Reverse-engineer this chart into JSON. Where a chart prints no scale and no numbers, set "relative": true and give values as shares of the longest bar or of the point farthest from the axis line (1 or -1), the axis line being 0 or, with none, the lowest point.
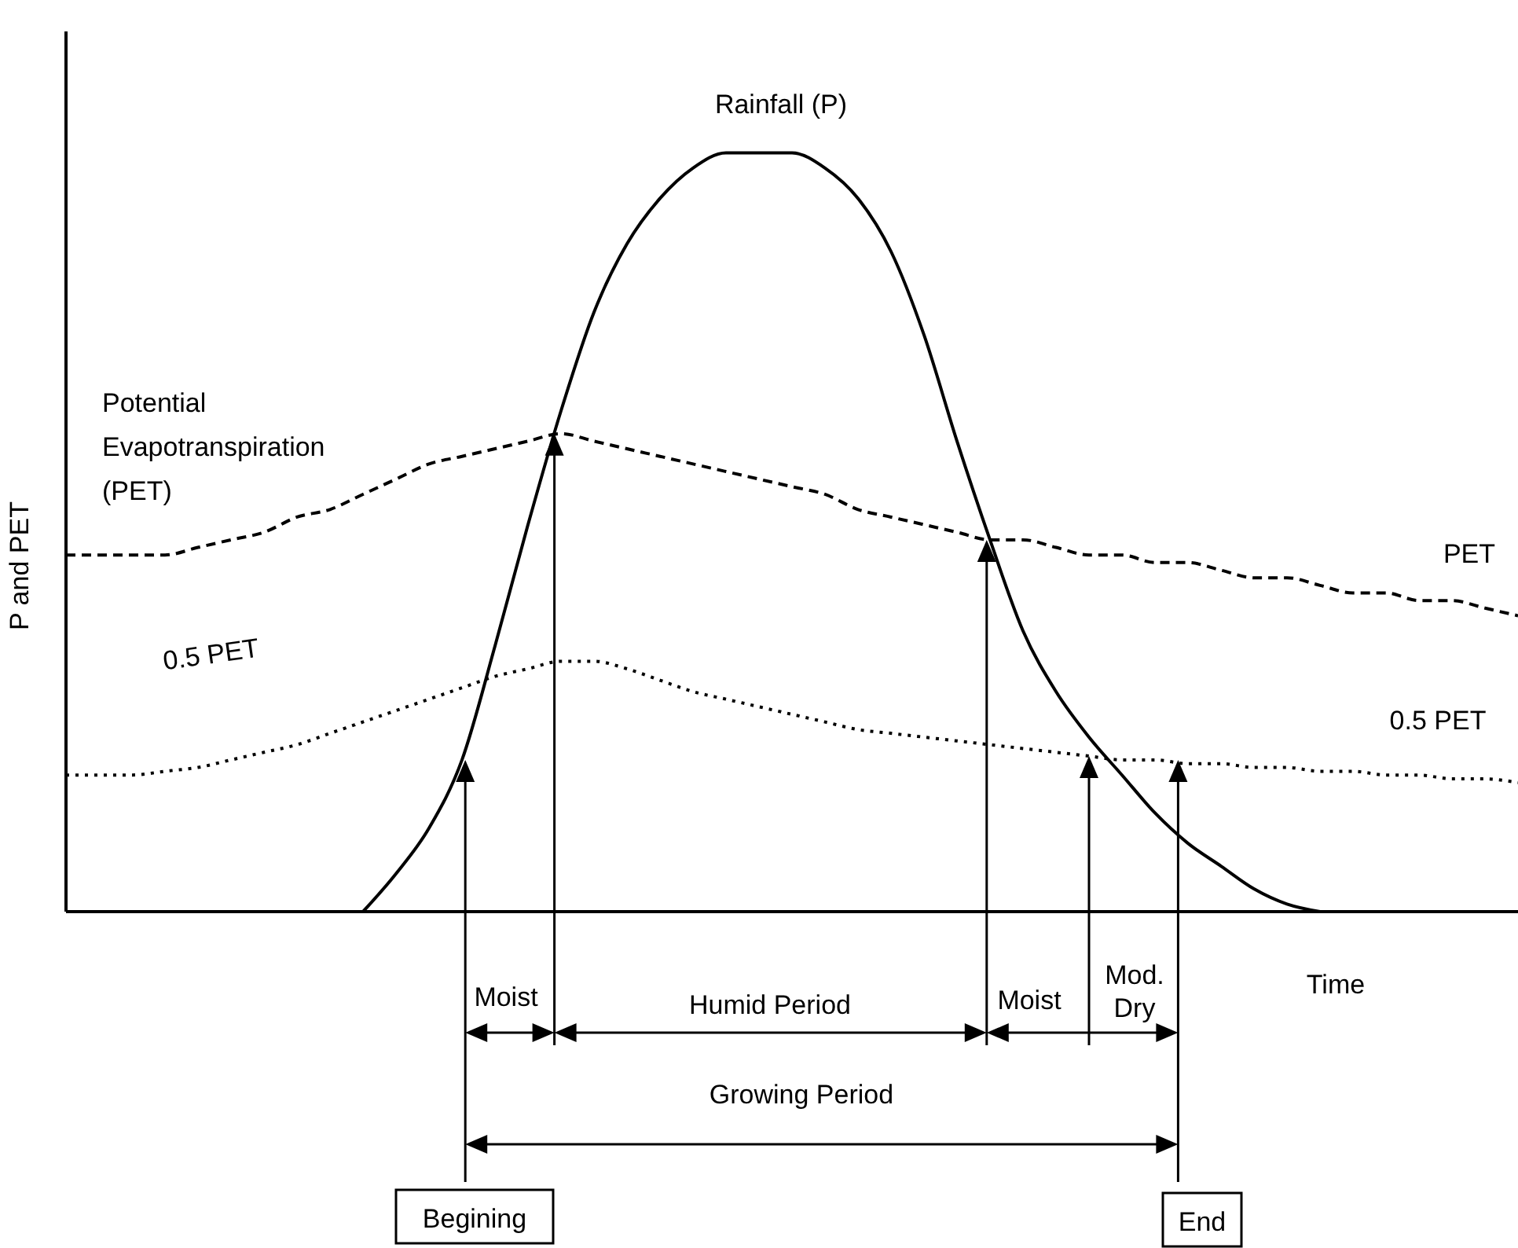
{
  "chart_data": {
    "type": "line",
    "relative": true,
    "ylabel": "P and PET",
    "marker": "none",
    "categories": [
      null,
      null,
      null,
      null,
      null,
      null,
      null,
      null,
      null,
      null,
      null,
      null,
      null,
      null,
      null,
      null,
      null,
      null,
      null,
      null,
      null,
      null,
      null,
      null,
      null,
      null,
      null,
      null,
      null,
      null,
      null,
      null,
      null,
      null,
      null,
      null,
      null,
      null,
      null,
      null,
      null,
      null,
      null,
      null,
      null
    ],
    "series": [
      {
        "name": "Rainfall (P)",
        "color": "#000000",
        "line_style": "solid",
        "values": [
          null,
          null,
          null,
          null,
          null,
          null,
          null,
          null,
          null,
          0,
          0.05,
          0.11,
          0.2,
          0.35,
          0.51,
          0.66,
          0.79,
          0.88,
          0.94,
          0.98,
          1.0,
          1.0,
          1.0,
          0.98,
          0.94,
          0.87,
          0.76,
          0.62,
          0.49,
          0.37,
          0.29,
          0.23,
          0.18,
          0.13,
          0.09,
          0.06,
          0.03,
          0.01,
          0,
          null,
          null,
          null,
          null,
          null,
          null
        ]
      },
      {
        "name": "PET",
        "color": "#000000",
        "line_style": "dashed",
        "values": [
          0.47,
          0.47,
          0.47,
          0.47,
          0.48,
          0.49,
          0.5,
          0.52,
          0.53,
          0.55,
          0.57,
          0.59,
          0.6,
          0.61,
          0.62,
          0.63,
          0.62,
          0.61,
          0.6,
          0.59,
          0.58,
          0.57,
          0.56,
          0.55,
          0.53,
          0.52,
          0.51,
          0.5,
          0.49,
          0.49,
          0.48,
          0.47,
          0.47,
          0.46,
          0.46,
          0.45,
          0.44,
          0.44,
          0.43,
          0.42,
          0.42,
          0.41,
          0.41,
          0.4,
          0.39
        ]
      },
      {
        "name": "0.5 PET",
        "color": "#000000",
        "line_style": "dotted",
        "values": [
          0.18,
          0.18,
          0.18,
          0.185,
          0.19,
          0.2,
          0.21,
          0.22,
          0.235,
          0.25,
          0.265,
          0.28,
          0.295,
          0.31,
          0.32,
          0.33,
          0.33,
          0.32,
          0.305,
          0.29,
          0.28,
          0.27,
          0.26,
          0.25,
          0.24,
          0.235,
          0.23,
          0.225,
          0.22,
          0.215,
          0.21,
          0.205,
          0.2,
          0.2,
          0.195,
          0.195,
          0.19,
          0.19,
          0.185,
          0.185,
          0.18,
          0.18,
          0.175,
          0.175,
          0.17
        ]
      }
    ],
    "annotations": [
      "Potential Evapotranspiration (PET)",
      "0.5 PET",
      "Moist",
      "Humid Period",
      "Moist",
      "Mod. Dry",
      "Growing Period",
      "Begining",
      "End",
      "Time"
    ]
  }
}
